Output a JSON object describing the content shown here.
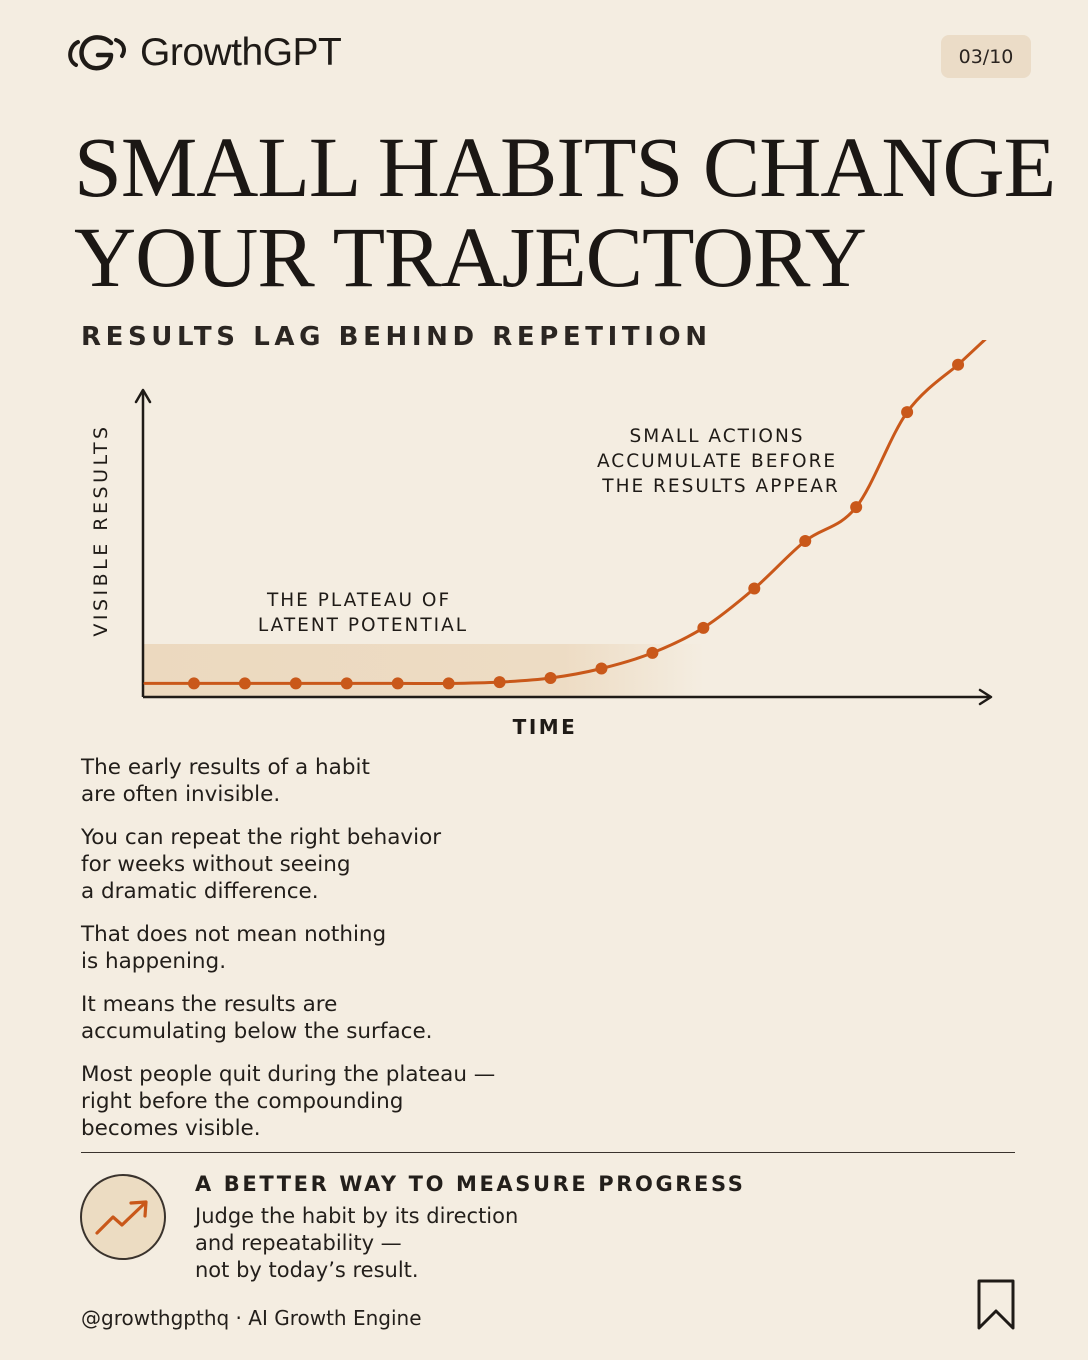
{
  "brand": {
    "name": "GrowthGPT",
    "logo_icon": "growthgpt-logo-icon"
  },
  "page_indicator": "03/10",
  "title_lines": [
    "SMALL HABITS CHANGE",
    "YOUR TRAJECTORY"
  ],
  "subtitle": "RESULTS LAG BEHIND REPETITION",
  "chart_data": {
    "type": "line",
    "xlabel": "TIME",
    "ylabel": "VISIBLE RESULTS",
    "x": [
      1,
      2,
      3,
      4,
      5,
      6,
      7,
      8,
      9,
      10,
      11,
      12,
      13,
      14,
      15,
      16
    ],
    "y": [
      0,
      0,
      0,
      0,
      0,
      0,
      0.02,
      0.08,
      0.22,
      0.45,
      0.82,
      1.4,
      2.1,
      2.6,
      4.0,
      4.7
    ],
    "xlim": [
      0,
      17
    ],
    "ylim": [
      -0.2,
      5.3
    ],
    "grid": false,
    "annotations": [
      "THE PLATEAU OF\nLATENT POTENTIAL",
      "SMALL ACTIONS\nACCUMULATE BEFORE\nTHE RESULTS APPEAR"
    ],
    "highlight_region": "plateau",
    "colors": {
      "line": "#c9581a",
      "plateau": "#ecd9bf",
      "axis": "#1f1b17"
    }
  },
  "body_paragraphs": [
    "The early results of a habit\nare often invisible.",
    "You can repeat the right behavior\nfor weeks without seeing\na dramatic difference.",
    "That does not mean nothing\nis happening.",
    "It means the results are\naccumulating below the surface.",
    "Most people quit during the plateau —\nright before the compounding\nbecomes visible."
  ],
  "tip": {
    "icon": "trending-up-icon",
    "heading": "A BETTER WAY TO MEASURE PROGRESS",
    "body": "Judge the habit by its direction\nand repeatability —\nnot by today’s result."
  },
  "footer": "@growthgpthq · AI Growth Engine",
  "bookmark_icon": "bookmark-icon",
  "colors": {
    "background": "#f4ede1",
    "accent": "#c9581a",
    "badge": "#ebdcc7"
  }
}
